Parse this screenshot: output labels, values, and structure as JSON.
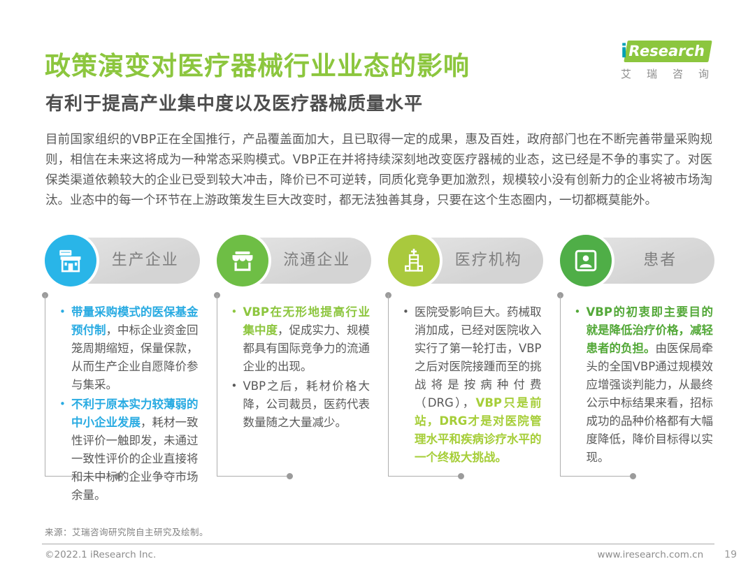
{
  "page": {
    "title": "政策演变对医疗器械行业业态的影响",
    "subtitle": "有利于提高产业集中度以及医疗器械质量水平",
    "intro": "目前国家组织的VBP正在全国推行，产品覆盖面加大，且已取得一定的成果，惠及百姓，政府部门也在不断完善带量采购规则，相信在未来这将成为一种常态采购模式。VBP正在并将持续深刻地改变医疗器械的业态，这已经是不争的事实了。对医保类渠道依赖较大的企业已受到较大冲击，降价已不可逆转，同质化竞争更加激烈，规模较小没有创新力的企业将被市场淘汰。业态中的每一个环节在上游政策发生巨大改变时，都无法独善其身，只要在这个生态圈内，一切都概莫能外。",
    "source": "来源：艾瑞咨询研究院自主研究及绘制。",
    "copyright": "©2022.1 iResearch Inc.",
    "website": "www.iresearch.com.cn",
    "page_number": "19"
  },
  "logo": {
    "i": "i",
    "brand": "Research",
    "cn": "艾瑞咨询"
  },
  "colors": {
    "brand_green": "#8cc63e",
    "logo_i_teal": "#00a0b4",
    "col1_accent": "#29b5e8",
    "col2_accent": "#6ebe45",
    "col3_accent": "#a9c93d",
    "col4_accent": "#4fae47",
    "pill_gray": "#d8d8d8",
    "body_text": "#595959"
  },
  "columns": [
    {
      "label": "生产企业",
      "icon": "pharmacy-store-icon",
      "accent": "#29b5e8",
      "items": [
        {
          "marker_color": "#29abe2",
          "segments": [
            {
              "text": "带量采购模式的医保基金预付制",
              "bold": true,
              "color": "#29abe2"
            },
            {
              "text": "，中标企业资金回笼周期缩短，保量保款，从而生产企业自愿降价参与集采。"
            }
          ]
        },
        {
          "marker_color": "#29abe2",
          "segments": [
            {
              "text": "不利于原本实力较薄弱的中小企业发展",
              "bold": true,
              "color": "#29abe2"
            },
            {
              "text": "，耗材一致性评价一触即发，未通过一致性评价的企业直接将和未中标的企业争夺市场余量。"
            }
          ]
        }
      ]
    },
    {
      "label": "流通企业",
      "icon": "storefront-icon",
      "accent": "#6ebe45",
      "items": [
        {
          "marker_color": "#8dc63f",
          "segments": [
            {
              "text": "VBP在无形地提高行业集中度",
              "bold": true,
              "color": "#8dc63f"
            },
            {
              "text": "，促成实力、规模都具有国际竞争力的流通企业的出现。"
            }
          ]
        },
        {
          "marker_color": "#595959",
          "segments": [
            {
              "text": "VBP之后，耗材价格大降，公司裁员，医药代表数量随之大量减少。"
            }
          ]
        }
      ]
    },
    {
      "label": "医疗机构",
      "icon": "hospital-icon",
      "accent": "#a9c93d",
      "items": [
        {
          "marker_color": "#595959",
          "segments": [
            {
              "text": "医院受影响巨大。药械取消加成，已经对医院收入实行了第一轮打击，VBP之后对医院接踵而至的挑战将是按病种付费（DRG），"
            },
            {
              "text": "VBP只是前站，DRG才是对医院管理水平和疾病诊疗水平的一个终极大挑战。",
              "bold": true,
              "color": "#a6ce39"
            }
          ]
        }
      ]
    },
    {
      "label": "患者",
      "icon": "patient-icon",
      "accent": "#4fae47",
      "items": [
        {
          "marker_color": "#53a838",
          "segments": [
            {
              "text": "VBP的初衷即主要目的就是降低治疗价格，减轻患者的负担。",
              "bold": true,
              "color": "#53a838"
            },
            {
              "text": "由医保局牵头的全国VBP通过规模效应增强谈判能力，从最终公示中标结果来看，招标成功的品种价格都有大幅度降低，降价目标得以实现。"
            }
          ]
        }
      ]
    }
  ]
}
